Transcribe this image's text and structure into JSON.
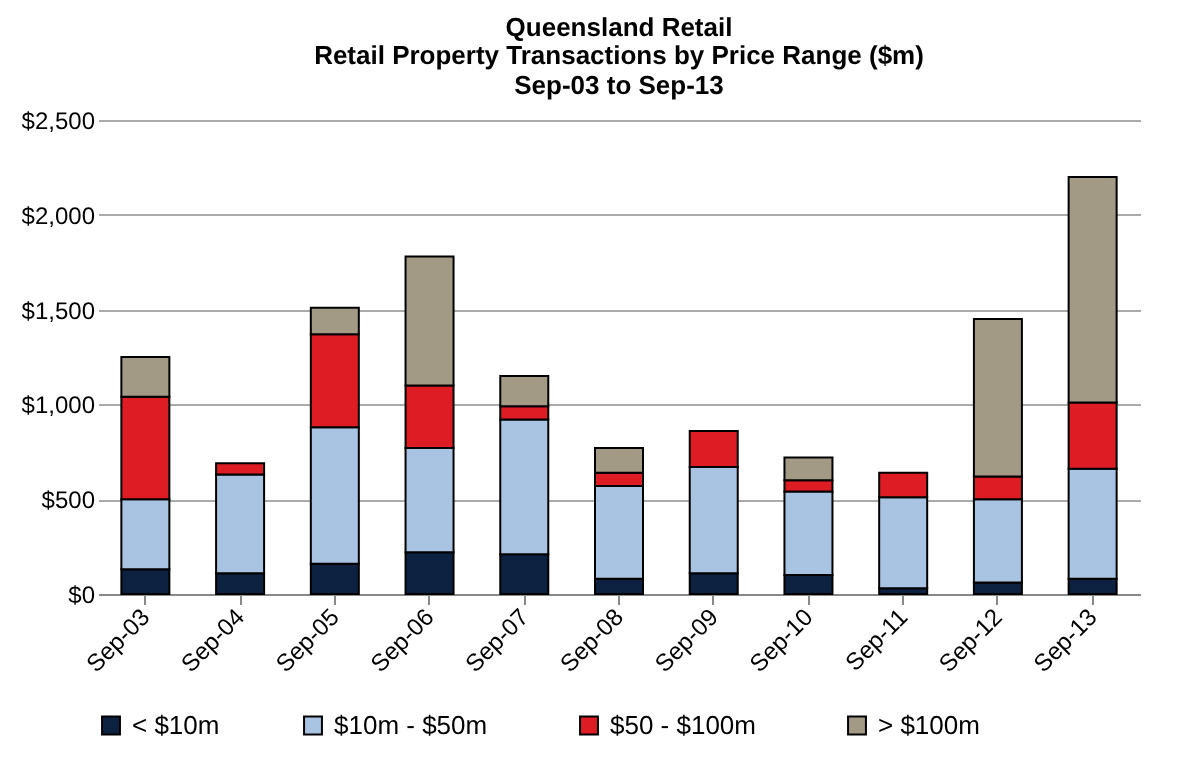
{
  "chart_data": {
    "type": "bar",
    "stacked": true,
    "title": "Queensland Retail",
    "subtitle": "Retail Property Transactions by Price Range ($m)\nSep-03 to Sep-13",
    "categories": [
      "Sep-03",
      "Sep-04",
      "Sep-05",
      "Sep-06",
      "Sep-07",
      "Sep-08",
      "Sep-09",
      "Sep-10",
      "Sep-11",
      "Sep-12",
      "Sep-13"
    ],
    "series": [
      {
        "name": "< $10m",
        "color": "#0d2240",
        "values": [
          130,
          110,
          160,
          220,
          210,
          80,
          110,
          100,
          30,
          60,
          80
        ]
      },
      {
        "name": "$10m  - $50m",
        "color": "#a9c4e2",
        "values": [
          370,
          520,
          720,
          550,
          710,
          490,
          560,
          440,
          480,
          440,
          580
        ]
      },
      {
        "name": "$50  - $100m",
        "color": "#dd1c24",
        "values": [
          540,
          60,
          490,
          330,
          70,
          70,
          190,
          60,
          130,
          120,
          350
        ]
      },
      {
        "name": "> $100m",
        "color": "#a39a86",
        "values": [
          210,
          null,
          140,
          680,
          160,
          130,
          null,
          120,
          null,
          830,
          1190
        ]
      }
    ],
    "ylim": [
      0,
      2500
    ],
    "yticks": [
      {
        "value": 0,
        "label": "$0"
      },
      {
        "value": 500,
        "label": "$500"
      },
      {
        "value": 1000,
        "label": "$1,000"
      },
      {
        "value": 1500,
        "label": "$1,500"
      },
      {
        "value": 2000,
        "label": "$2,000"
      },
      {
        "value": 2500,
        "label": "$2,500"
      }
    ],
    "grid": "y",
    "legend": "bottom"
  }
}
